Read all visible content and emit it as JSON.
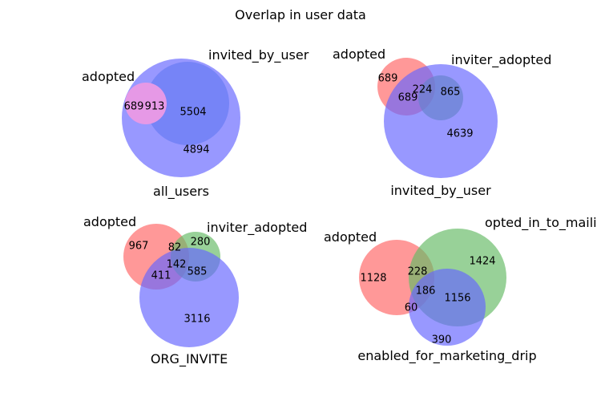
{
  "title": "Overlap in user data",
  "colors": {
    "a": "#ff6666",
    "b": "#66bb66",
    "c": "#6666ff"
  },
  "chart_data": [
    {
      "type": "venn2",
      "sets": [
        "invited_by_user",
        "all_users"
      ],
      "regions": [
        {
          "key": "A",
          "value": "5504"
        },
        {
          "key": "B",
          "value": "4894"
        }
      ]
    },
    {
      "type": "venn3",
      "sets": [
        "adopted",
        "inviter_adopted",
        "invited_by_user"
      ],
      "regions": [
        {
          "key": "A",
          "value": "689"
        },
        {
          "key": "ABC",
          "value": "224"
        },
        {
          "key": "AC",
          "value": "689"
        },
        {
          "key": "BC",
          "value": "865"
        },
        {
          "key": "C",
          "value": "4639"
        }
      ]
    },
    {
      "type": "venn3",
      "sets": [
        "adopted",
        "inviter_adopted",
        "ORG_INVITE"
      ],
      "regions": [
        {
          "key": "A",
          "value": "967"
        },
        {
          "key": "AB",
          "value": "82"
        },
        {
          "key": "B",
          "value": "280"
        },
        {
          "key": "ABC",
          "value": "142"
        },
        {
          "key": "AC",
          "value": "411"
        },
        {
          "key": "BC",
          "value": "585"
        },
        {
          "key": "C",
          "value": "3116"
        }
      ]
    },
    {
      "type": "venn3",
      "sets": [
        "adopted",
        "opted_in_to_maili",
        "enabled_for_marketing_drip"
      ],
      "regions": [
        {
          "key": "A",
          "value": "1128"
        },
        {
          "key": "AB",
          "value": "228"
        },
        {
          "key": "B",
          "value": "1424"
        },
        {
          "key": "ABC",
          "value": "186"
        },
        {
          "key": "BC",
          "value": "1156"
        },
        {
          "key": "AC",
          "value": "60"
        },
        {
          "key": "C",
          "value": "390"
        }
      ]
    }
  ]
}
